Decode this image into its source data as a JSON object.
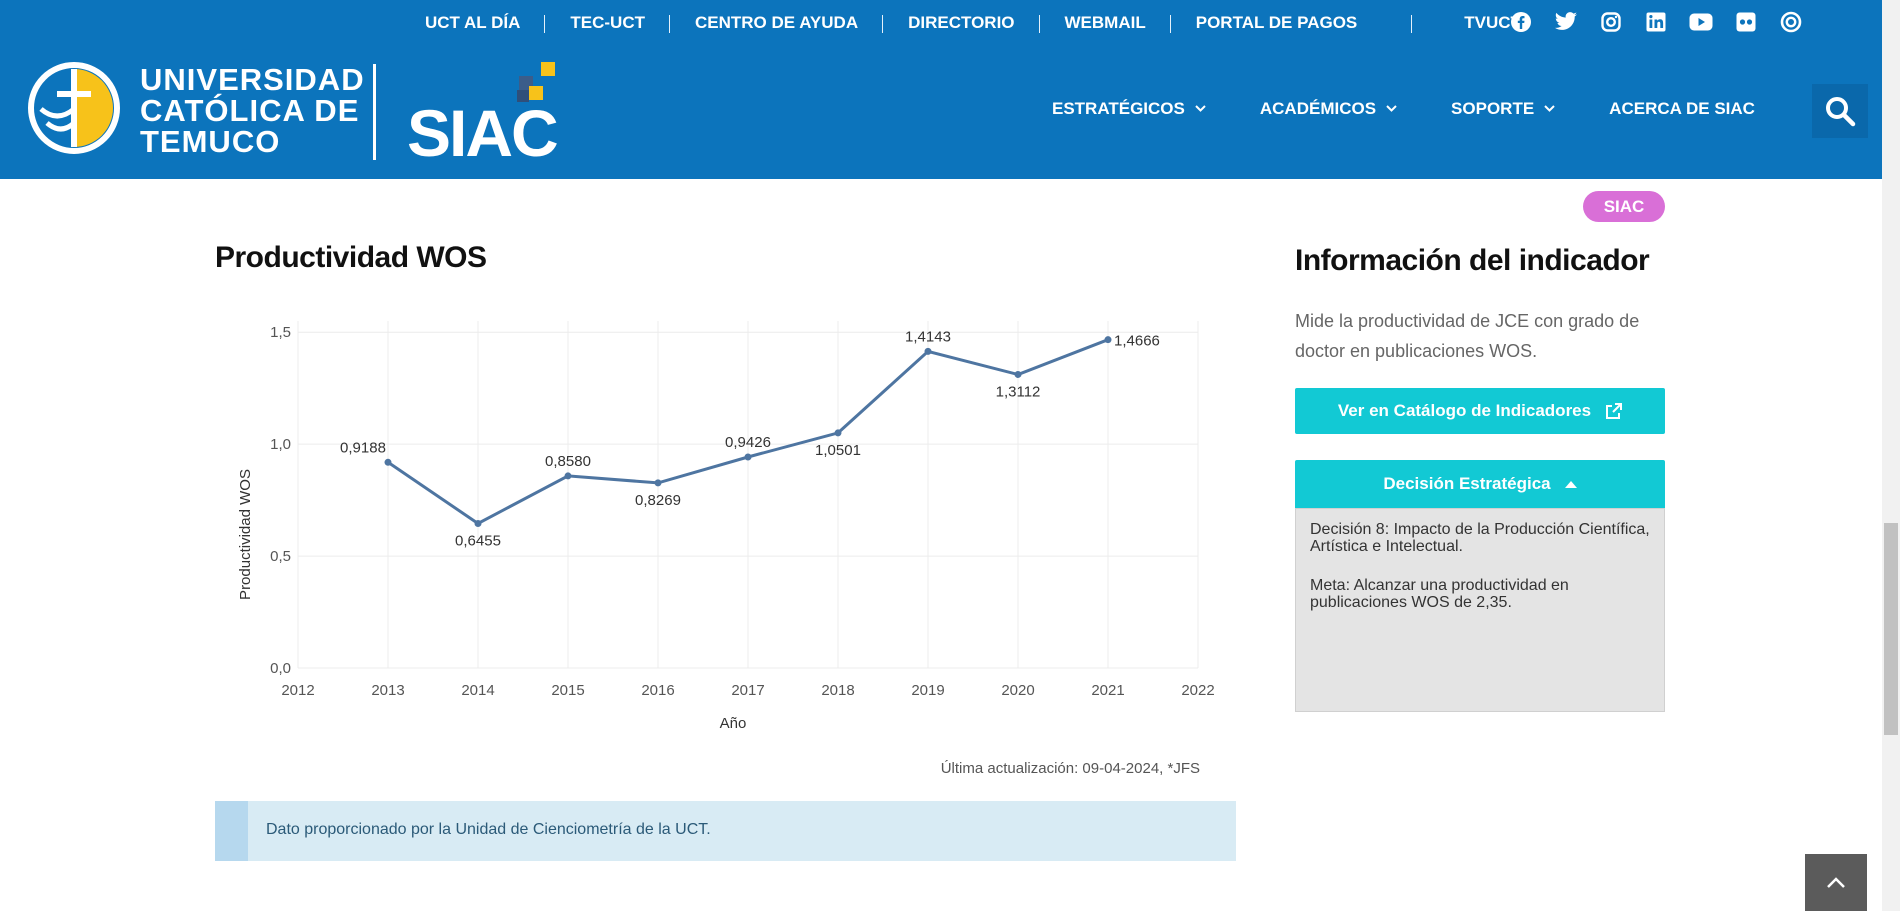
{
  "topbar": {
    "links": [
      "UCT AL DÍA",
      "TEC-UCT",
      "CENTRO DE AYUDA",
      "DIRECTORIO",
      "WEBMAIL",
      "PORTAL DE PAGOS",
      "TVUCT"
    ],
    "social_icons": [
      "facebook-icon",
      "twitter-icon",
      "instagram-icon",
      "linkedin-icon",
      "youtube-icon",
      "flickr-icon",
      "issuu-icon"
    ]
  },
  "header": {
    "university_lines": [
      "UNIVERSIDAD",
      "CATÓLICA DE",
      "TEMUCO"
    ],
    "brand": "SIAC",
    "nav": [
      "ESTRATÉGICOS",
      "ACADÉMICOS",
      "SOPORTE",
      "ACERCA DE SIAC"
    ]
  },
  "badge": "SIAC",
  "chart_section": {
    "title": "Productividad WOS",
    "updated": "Última actualización: 09-04-2024, *JFS",
    "note": "Dato proporcionado por la Unidad de Cienciometría de la UCT."
  },
  "chart_data": {
    "type": "line",
    "x": [
      2013,
      2014,
      2015,
      2016,
      2017,
      2018,
      2019,
      2020,
      2021
    ],
    "series": [
      {
        "values": [
          0.9188,
          0.6455,
          0.858,
          0.8269,
          0.9426,
          1.0501,
          1.4143,
          1.3112,
          1.4666
        ]
      }
    ],
    "data_labels": [
      "0,9188",
      "0,6455",
      "0,8580",
      "0,8269",
      "0,9426",
      "1,0501",
      "1,4143",
      "1,3112",
      "1,4666"
    ],
    "xlabel": "Año",
    "ylabel": "Productividad WOS",
    "xlim": [
      2012,
      2022
    ],
    "ylim": [
      0,
      1.55
    ],
    "x_ticks": [
      "2012",
      "2013",
      "2014",
      "2015",
      "2016",
      "2017",
      "2018",
      "2019",
      "2020",
      "2021",
      "2022"
    ],
    "y_ticks": [
      0,
      0.5,
      1.0,
      1.5
    ],
    "y_tick_labels": [
      "0,0",
      "0,5",
      "1,0",
      "1,5"
    ],
    "grid": true,
    "line_color": "#4e75a1"
  },
  "info": {
    "title": "Información del indicador",
    "description": "Mide la productividad de JCE con grado de doctor en publicaciones WOS.",
    "catalog_button": "Ver en Catálogo de Indicadores",
    "decision_button": "Decisión Estratégica",
    "decision_text": "Decisión 8: Impacto de la Producción Científica, Artística e Intelectual.",
    "meta_text": "Meta: Alcanzar una productividad en publicaciones WOS de 2,35."
  },
  "colors": {
    "header_blue": "#0c74bc",
    "accent_cyan": "#12c9d4",
    "badge_pink": "#d96fd7",
    "logo_yellow": "#f7c21a"
  }
}
